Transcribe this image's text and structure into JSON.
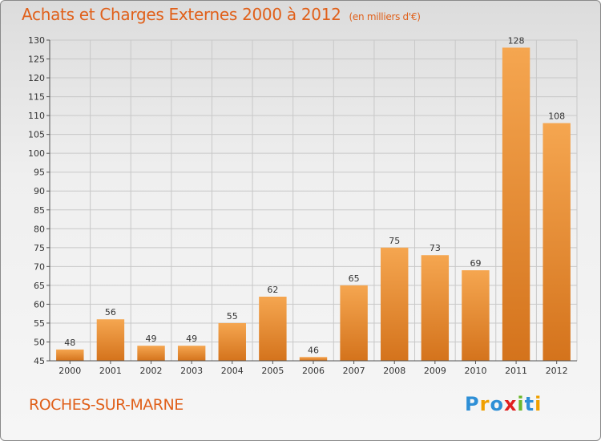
{
  "title": "Achats et Charges Externes 2000 à 2012",
  "subtitle": "(en milliers d'€)",
  "commune": "ROCHES-SUR-MARNE",
  "logo": {
    "text": "Proxiti",
    "letters": [
      {
        "char": "P",
        "color": "#2e8fd6"
      },
      {
        "char": "r",
        "color": "#f0a000"
      },
      {
        "char": "o",
        "color": "#2e8fd6"
      },
      {
        "char": "x",
        "color": "#e02020"
      },
      {
        "char": "i",
        "color": "#6cb82c"
      },
      {
        "char": "t",
        "color": "#2e8fd6"
      },
      {
        "char": "i",
        "color": "#f0a000"
      }
    ]
  },
  "colors": {
    "title": "#e0601a",
    "bar_light": "#f5a650",
    "bar_dark": "#d4731c",
    "grid": "#c8c8c8"
  },
  "chart_data": {
    "type": "bar",
    "title": "Achats et Charges Externes 2000 à 2012",
    "subtitle": "(en milliers d'€)",
    "xlabel": "",
    "ylabel": "",
    "categories": [
      "2000",
      "2001",
      "2002",
      "2003",
      "2004",
      "2005",
      "2006",
      "2007",
      "2008",
      "2009",
      "2010",
      "2011",
      "2012"
    ],
    "values": [
      48,
      56,
      49,
      49,
      55,
      62,
      46,
      65,
      75,
      73,
      69,
      128,
      108
    ],
    "ylim": [
      45,
      130
    ],
    "yticks": [
      45,
      50,
      55,
      60,
      65,
      70,
      75,
      80,
      85,
      90,
      95,
      100,
      105,
      110,
      115,
      120,
      125,
      130
    ],
    "grid": true,
    "data_labels": true,
    "legend": "none"
  }
}
